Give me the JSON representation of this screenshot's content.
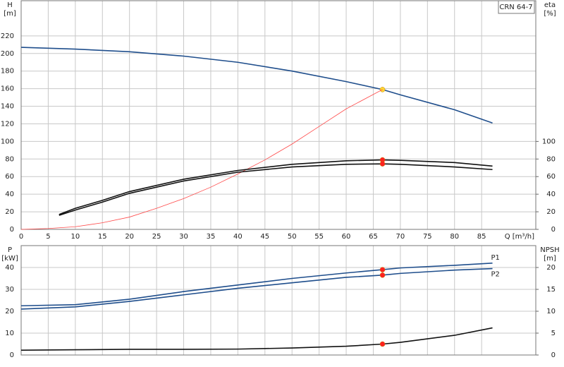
{
  "chart_data": [
    {
      "type": "line",
      "model": "CRN 64-7",
      "y_label": "H",
      "y_unit": "[m]",
      "y2_label": "eta",
      "y2_unit": "[%]",
      "x_label": "Q [m³/h]",
      "xlim": [
        0,
        95
      ],
      "xticks": [
        0,
        5,
        10,
        15,
        20,
        25,
        30,
        35,
        40,
        45,
        50,
        55,
        60,
        65,
        70,
        75,
        80,
        85
      ],
      "ylim": [
        0,
        260
      ],
      "yticks": [
        0,
        20,
        40,
        60,
        80,
        100,
        120,
        140,
        160,
        180,
        200,
        220
      ],
      "y2lim": [
        0,
        260
      ],
      "y2ticks": [
        0,
        20,
        40,
        60,
        80,
        100
      ],
      "grid": true,
      "operating_point_x": 66.7,
      "series": [
        {
          "color": "#1f4e8c",
          "axis": "y",
          "x": [
            0,
            10,
            20,
            30,
            40,
            50,
            60,
            66.7,
            70,
            80,
            87
          ],
          "values": [
            207,
            205,
            202,
            197,
            190,
            180,
            168,
            159,
            153,
            136,
            121
          ],
          "point": 159,
          "point_color": "#ffd633"
        },
        {
          "color": "#ff4a4a",
          "axis": "y",
          "x": [
            0,
            5,
            10,
            15,
            20,
            25,
            30,
            35,
            40,
            45,
            50,
            55,
            60,
            66.7
          ],
          "values": [
            0,
            1,
            3,
            7.5,
            14,
            24,
            35,
            48,
            63,
            79,
            97,
            117,
            137,
            159
          ]
        },
        {
          "color": "#111111",
          "axis": "y2",
          "x": [
            7,
            10,
            15,
            20,
            30,
            40,
            50,
            60,
            66.7,
            70,
            80,
            87
          ],
          "values": [
            17,
            24,
            33,
            43,
            57,
            67,
            74,
            78,
            79,
            78.5,
            76,
            72
          ],
          "point": 79,
          "point_color": "#ff2020"
        },
        {
          "color": "#111111",
          "axis": "y2",
          "x": [
            7,
            10,
            15,
            20,
            30,
            40,
            50,
            60,
            66.7,
            70,
            80,
            87
          ],
          "values": [
            16,
            22,
            31,
            41,
            55,
            65,
            71,
            74,
            74.5,
            74,
            71,
            68
          ],
          "point": 74.5,
          "point_color": "#ff2020"
        }
      ]
    },
    {
      "type": "line",
      "y_label": "P",
      "y_unit": "[kW]",
      "y2_label": "NPSH",
      "y2_unit": "[m]",
      "xlim": [
        0,
        95
      ],
      "xticks": [
        0,
        5,
        10,
        15,
        20,
        25,
        30,
        35,
        40,
        45,
        50,
        55,
        60,
        65,
        70,
        75,
        80,
        85
      ],
      "ylim": [
        0,
        50
      ],
      "yticks": [
        0,
        10,
        20,
        30,
        40
      ],
      "y2lim": [
        0,
        25
      ],
      "y2ticks": [
        0,
        5,
        10,
        15,
        20
      ],
      "grid": true,
      "operating_point_x": 66.7,
      "series": [
        {
          "name": "P1",
          "color": "#1f4e8c",
          "axis": "y",
          "x": [
            0,
            10,
            20,
            30,
            40,
            50,
            60,
            66.7,
            70,
            80,
            87
          ],
          "values": [
            22.5,
            23,
            25.5,
            29,
            32,
            35,
            37.5,
            39,
            39.8,
            41,
            42
          ],
          "point": 39,
          "point_color": "#ff2020"
        },
        {
          "name": "P2",
          "color": "#1f4e8c",
          "axis": "y",
          "x": [
            0,
            10,
            20,
            30,
            40,
            50,
            60,
            66.7,
            70,
            80,
            87
          ],
          "values": [
            21,
            22,
            24.5,
            27.5,
            30.5,
            33,
            35.5,
            36.5,
            37.3,
            38.8,
            39.5
          ],
          "point": 36.5,
          "point_color": "#ff2020"
        },
        {
          "color": "#111111",
          "axis": "y2",
          "x": [
            0,
            10,
            20,
            30,
            40,
            50,
            60,
            66.7,
            70,
            80,
            87
          ],
          "values": [
            1.1,
            1.2,
            1.3,
            1.3,
            1.35,
            1.6,
            2.0,
            2.5,
            2.9,
            4.5,
            6.2
          ],
          "point": 2.5,
          "point_color": "#ff2020"
        }
      ]
    }
  ]
}
